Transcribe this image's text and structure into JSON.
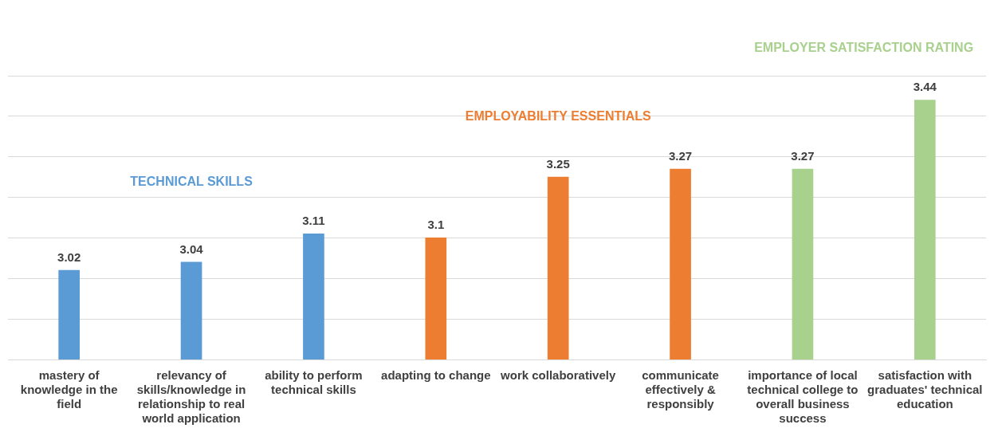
{
  "chart_data": {
    "type": "bar",
    "categories": [
      "mastery of knowledge in the field",
      "relevancy of skills/knowledge in relationship to real world application",
      "ability to perform technical skills",
      "adapting to change",
      "work collaboratively",
      "communicate effectively & responsibly",
      "importance of local technical college to overall business success",
      "satisfaction with graduates' technical education"
    ],
    "series": [
      {
        "name": "TECHNICAL SKILLS",
        "color": "#5b9bd5",
        "values": [
          3.02,
          3.04,
          3.11,
          null,
          null,
          null,
          null,
          null
        ]
      },
      {
        "name": "EMPLOYABILITY ESSENTIALS",
        "color": "#ed7d31",
        "values": [
          null,
          null,
          null,
          3.1,
          3.25,
          3.27,
          null,
          null
        ]
      },
      {
        "name": "EMPLOYER SATISFACTION RATING",
        "color": "#a9d18e",
        "values": [
          null,
          null,
          null,
          null,
          null,
          null,
          3.27,
          3.44
        ]
      }
    ],
    "ylim": [
      2.8,
      3.5
    ],
    "yticks": [
      {
        "value": 2.8,
        "label": null
      },
      {
        "value": 2.9,
        "label": null
      },
      {
        "value": 3.0,
        "label": null
      },
      {
        "value": 3.1,
        "label": null
      },
      {
        "value": 3.2,
        "label": null
      },
      {
        "value": 3.3,
        "label": null
      },
      {
        "value": 3.4,
        "label": null
      },
      {
        "value": 3.5,
        "label": null
      }
    ],
    "tick_labels": "x",
    "grid": "y",
    "data_labels": true,
    "legend": false
  }
}
